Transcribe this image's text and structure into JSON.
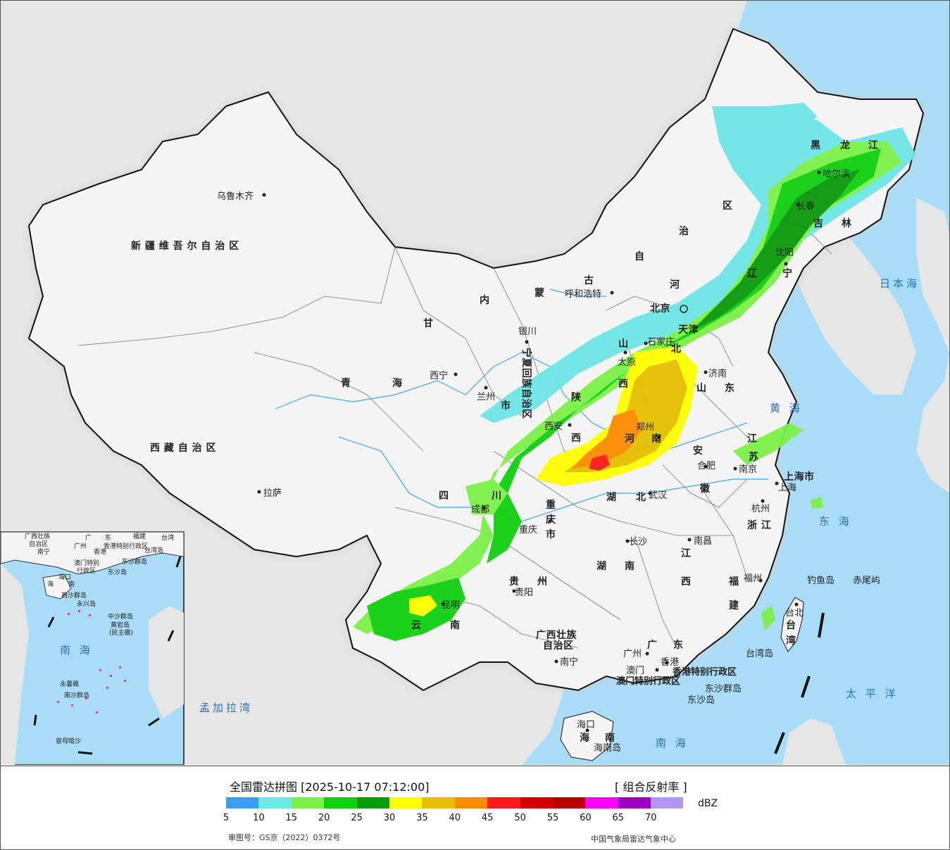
{
  "header": {
    "title": "全国雷达拼图 [2025-10-17 07:12:00]",
    "product": "[ 组合反射率 ]"
  },
  "legend": {
    "unit": "dBZ",
    "ticks": [
      "5",
      "10",
      "15",
      "20",
      "25",
      "30",
      "35",
      "40",
      "45",
      "50",
      "55",
      "60",
      "65",
      "70"
    ],
    "colors": [
      "#3d9cf0",
      "#6ee6e6",
      "#7cf048",
      "#10d010",
      "#0a9a0a",
      "#ffff00",
      "#e6c000",
      "#ff8c00",
      "#ff1a1a",
      "#d40000",
      "#b80000",
      "#ff00ff",
      "#9a00c0",
      "#b496f0"
    ]
  },
  "footer": {
    "review_number": "审图号：GS京（2022）0372号",
    "credit": "中国气象局雷达气象中心"
  },
  "colors": {
    "sea": "#a9ddf7",
    "land": "#f4f4f4",
    "foreign_land": "#e6e6e6",
    "border": "#111111",
    "river": "#3ba8f0"
  },
  "map": {
    "provinces": [
      {
        "id": "xinjiang",
        "label": "新 疆 维 吾 尔 自 治 区"
      },
      {
        "id": "xizang",
        "label": "西 藏 自 治 区"
      },
      {
        "id": "qinghai-1",
        "label": "青"
      },
      {
        "id": "qinghai-2",
        "label": "海"
      },
      {
        "id": "gansu",
        "label": "甘"
      },
      {
        "id": "neimenggu-1",
        "label": "内"
      },
      {
        "id": "neimenggu-2",
        "label": "蒙"
      },
      {
        "id": "neimenggu-3",
        "label": "古"
      },
      {
        "id": "neimenggu-4",
        "label": "自"
      },
      {
        "id": "neimenggu-5",
        "label": "治"
      },
      {
        "id": "neimenggu-6",
        "label": "区"
      },
      {
        "id": "heilongjiang-1",
        "label": "黑"
      },
      {
        "id": "heilongjiang-2",
        "label": "龙"
      },
      {
        "id": "heilongjiang-3",
        "label": "江"
      },
      {
        "id": "jilin-1",
        "label": "吉"
      },
      {
        "id": "jilin-2",
        "label": "林"
      },
      {
        "id": "liaoning-1",
        "label": "辽"
      },
      {
        "id": "liaoning-2",
        "label": "宁"
      },
      {
        "id": "hebei-1",
        "label": "河"
      },
      {
        "id": "hebei-2",
        "label": "北"
      },
      {
        "id": "shanxi-1",
        "label": "山"
      },
      {
        "id": "shanxi-2",
        "label": "西"
      },
      {
        "id": "shaanxi-1",
        "label": "陕"
      },
      {
        "id": "shaanxi-2",
        "label": "西"
      },
      {
        "id": "ningxia",
        "label": "宁夏回族自治区"
      },
      {
        "id": "shandong-1",
        "label": "山"
      },
      {
        "id": "shandong-2",
        "label": "东"
      },
      {
        "id": "henan-1",
        "label": "河"
      },
      {
        "id": "henan-2",
        "label": "南"
      },
      {
        "id": "jiangsu-1",
        "label": "江"
      },
      {
        "id": "jiangsu-2",
        "label": "苏"
      },
      {
        "id": "anhui-1",
        "label": "安"
      },
      {
        "id": "anhui-2",
        "label": "徽"
      },
      {
        "id": "shanghai",
        "label": "上海市"
      },
      {
        "id": "zhejiang",
        "label": "浙 江"
      },
      {
        "id": "hubei-1",
        "label": "湖"
      },
      {
        "id": "hubei-2",
        "label": "北"
      },
      {
        "id": "sichuan-1",
        "label": "四"
      },
      {
        "id": "sichuan-2",
        "label": "川"
      },
      {
        "id": "chongqing-1",
        "label": "重"
      },
      {
        "id": "chongqing-2",
        "label": "庆"
      },
      {
        "id": "chongqing-3",
        "label": "市"
      },
      {
        "id": "jiangxi-1",
        "label": "江"
      },
      {
        "id": "jiangxi-2",
        "label": "西"
      },
      {
        "id": "hunan-1",
        "label": "湖"
      },
      {
        "id": "hunan-2",
        "label": "南"
      },
      {
        "id": "guizhou-1",
        "label": "贵"
      },
      {
        "id": "guizhou-2",
        "label": "州"
      },
      {
        "id": "fujian-1",
        "label": "福"
      },
      {
        "id": "fujian-2",
        "label": "建"
      },
      {
        "id": "yunnan-1",
        "label": "云"
      },
      {
        "id": "yunnan-2",
        "label": "南"
      },
      {
        "id": "guangxi-1",
        "label": "广西壮族"
      },
      {
        "id": "guangxi-2",
        "label": "自治区"
      },
      {
        "id": "guangdong-1",
        "label": "广"
      },
      {
        "id": "guangdong-2",
        "label": "东"
      },
      {
        "id": "hainan-1",
        "label": "海"
      },
      {
        "id": "hainan-2",
        "label": "南"
      },
      {
        "id": "taiwan-1",
        "label": "台"
      },
      {
        "id": "taiwan-2",
        "label": "湾"
      },
      {
        "id": "tianjin",
        "label": "天津"
      },
      {
        "id": "beijing",
        "label": "北京"
      },
      {
        "id": "gansu-3",
        "label": "市"
      }
    ],
    "cities": [
      {
        "id": "urumqi",
        "label": "乌鲁木齐"
      },
      {
        "id": "lhasa",
        "label": "拉萨"
      },
      {
        "id": "xining",
        "label": "西宁"
      },
      {
        "id": "lanzhou",
        "label": "兰州"
      },
      {
        "id": "yinchuan",
        "label": "银川"
      },
      {
        "id": "hohhot",
        "label": "呼和浩特"
      },
      {
        "id": "harbin",
        "label": "哈尔滨"
      },
      {
        "id": "changchun",
        "label": "长春"
      },
      {
        "id": "shenyang",
        "label": "沈阳"
      },
      {
        "id": "shijiazhuang",
        "label": "石家庄"
      },
      {
        "id": "taiyuan",
        "label": "太原"
      },
      {
        "id": "jinan",
        "label": "济南"
      },
      {
        "id": "zhengzhou",
        "label": "郑州"
      },
      {
        "id": "xian",
        "label": "西安"
      },
      {
        "id": "hefei",
        "label": "合肥"
      },
      {
        "id": "nanjing",
        "label": "南京"
      },
      {
        "id": "shanghai-city",
        "label": "上海"
      },
      {
        "id": "hangzhou",
        "label": "杭州"
      },
      {
        "id": "wuhan",
        "label": "武汉"
      },
      {
        "id": "chengdu",
        "label": "成都"
      },
      {
        "id": "chongqing-city",
        "label": "重庆"
      },
      {
        "id": "changsha",
        "label": "长沙"
      },
      {
        "id": "nanchang",
        "label": "南昌"
      },
      {
        "id": "guiyang",
        "label": "贵阳"
      },
      {
        "id": "fuzhou",
        "label": "福州"
      },
      {
        "id": "kunming",
        "label": "昆明"
      },
      {
        "id": "nanning",
        "label": "南宁"
      },
      {
        "id": "guangzhou",
        "label": "广州"
      },
      {
        "id": "aomen",
        "label": "澳门"
      },
      {
        "id": "xianggang",
        "label": "香港"
      },
      {
        "id": "haikou",
        "label": "海口"
      },
      {
        "id": "taibei",
        "label": "台北"
      }
    ],
    "special_regions": [
      {
        "id": "hk-sar",
        "label": "香港特别行政区"
      },
      {
        "id": "macau-sar",
        "label": "澳门特别行政区"
      }
    ],
    "islands": [
      {
        "id": "diaoyu",
        "label": "钓鱼岛"
      },
      {
        "id": "chiwei",
        "label": "赤尾屿"
      },
      {
        "id": "dongsha",
        "label": "东沙群岛"
      },
      {
        "id": "dongsha-dao",
        "label": "东沙岛"
      },
      {
        "id": "taiwan-dao",
        "label": "台湾岛"
      },
      {
        "id": "hainan-dao",
        "label": "海南岛"
      }
    ],
    "seas": [
      {
        "id": "riben-hai",
        "label": "日本海"
      },
      {
        "id": "huang-hai",
        "label": "黄 海"
      },
      {
        "id": "dong-hai",
        "label": "东 海"
      },
      {
        "id": "taipingyang",
        "label": "太 平 洋"
      },
      {
        "id": "nan-hai",
        "label": "南 海"
      },
      {
        "id": "mengjiala-wan",
        "label": "孟加拉湾"
      }
    ],
    "inset": {
      "labels": [
        {
          "id": "inset-guangxi",
          "label": "广西壮族"
        },
        {
          "id": "inset-guangxi-2",
          "label": "自治区"
        },
        {
          "id": "inset-nanning",
          "label": "南宁"
        },
        {
          "id": "inset-guangdong",
          "label": "广"
        },
        {
          "id": "inset-guangdong-2",
          "label": "东"
        },
        {
          "id": "inset-fujian",
          "label": "福建"
        },
        {
          "id": "inset-taiwan",
          "label": "台湾"
        },
        {
          "id": "inset-guangzhou",
          "label": "广州"
        },
        {
          "id": "inset-xianggang",
          "label": "香港"
        },
        {
          "id": "inset-hk-sar",
          "label": "香港特别行政区"
        },
        {
          "id": "inset-taiwandao",
          "label": "台湾岛"
        },
        {
          "id": "inset-aomen",
          "label": "澳门特别"
        },
        {
          "id": "inset-aomen-2",
          "label": "行政区"
        },
        {
          "id": "inset-dongsha",
          "label": "东沙群岛"
        },
        {
          "id": "inset-dongshadao",
          "label": "东沙岛"
        },
        {
          "id": "inset-haikou",
          "label": "海口"
        },
        {
          "id": "inset-hainan",
          "label": "海"
        },
        {
          "id": "inset-hainan-2",
          "label": "南"
        },
        {
          "id": "inset-xisha",
          "label": "西沙群岛"
        },
        {
          "id": "inset-yongxing",
          "label": "永兴岛"
        },
        {
          "id": "inset-zhongsha",
          "label": "中沙群岛"
        },
        {
          "id": "inset-huangyan",
          "label": "黄岩岛"
        },
        {
          "id": "inset-minzhujiao",
          "label": "(民主礁)"
        },
        {
          "id": "inset-nanhai",
          "label": "南 海"
        },
        {
          "id": "inset-yongshu",
          "label": "永暑礁"
        },
        {
          "id": "inset-nansha",
          "label": "南沙群岛"
        },
        {
          "id": "inset-zengmu",
          "label": "曾母暗沙"
        }
      ]
    }
  }
}
